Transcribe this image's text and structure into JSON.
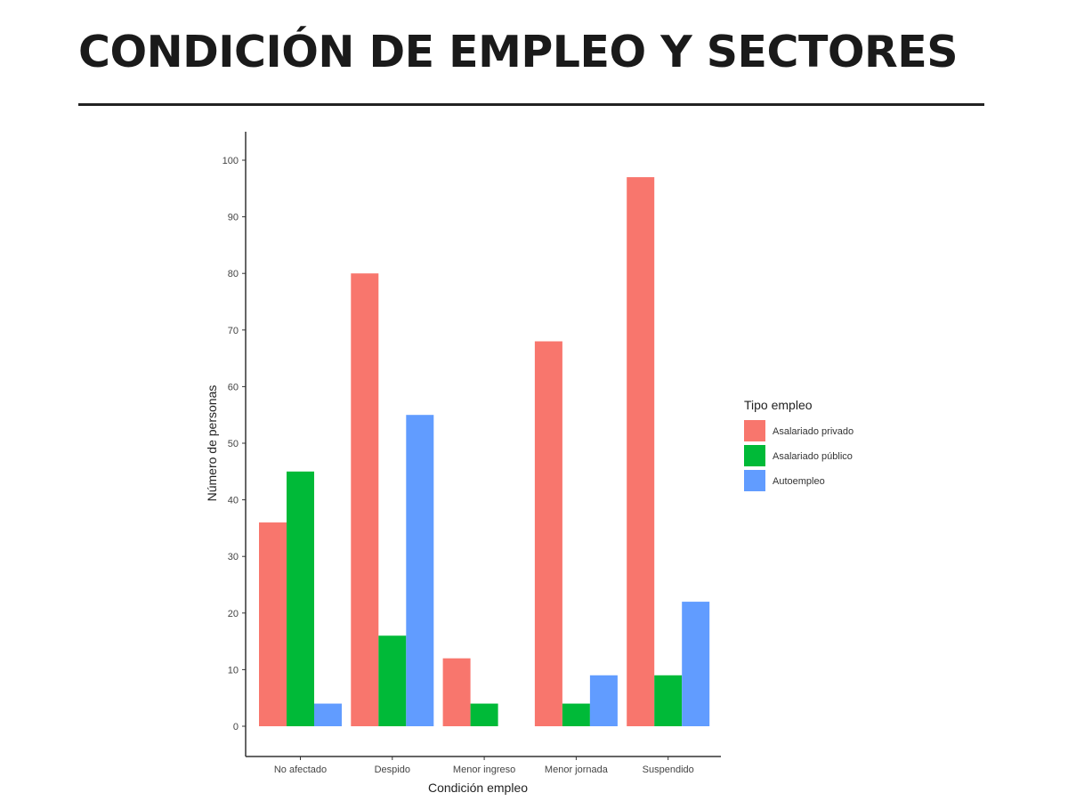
{
  "page": {
    "title": "CONDICIÓN DE EMPLEO Y SECTORES"
  },
  "chart_data": {
    "type": "bar",
    "title": "",
    "xlabel": "Condición empleo",
    "ylabel": "Número de personas",
    "categories": [
      "No afectado",
      "Despido",
      "Menor ingreso",
      "Menor jornada",
      "Suspendido"
    ],
    "series": [
      {
        "name": "Asalariado privado",
        "color": "#F8766D",
        "values": [
          36,
          80,
          12,
          68,
          97
        ]
      },
      {
        "name": "Asalariado público",
        "color": "#00BA38",
        "values": [
          45,
          16,
          4,
          4,
          9
        ]
      },
      {
        "name": "Autoempleo",
        "color": "#619CFF",
        "values": [
          4,
          55,
          null,
          9,
          22
        ]
      }
    ],
    "ylim": [
      0,
      100
    ],
    "yticks": [
      0,
      10,
      20,
      30,
      40,
      50,
      60,
      70,
      80,
      90,
      100
    ],
    "grid": false,
    "legend": {
      "title": "Tipo empleo",
      "position": "right"
    }
  }
}
